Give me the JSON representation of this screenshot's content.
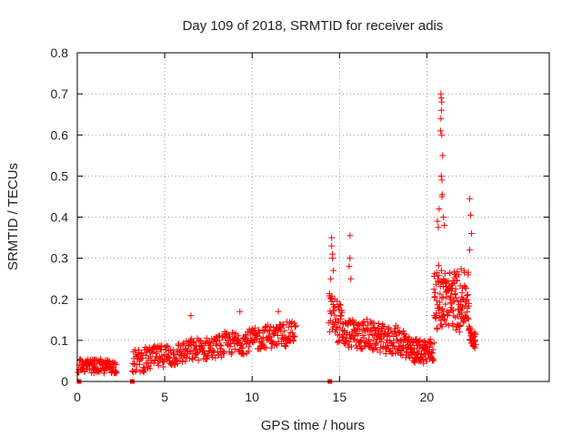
{
  "chart_data": {
    "type": "scatter",
    "title": "Day 109 of 2018, SRMTID for receiver adis",
    "xlabel": "GPS time / hours",
    "ylabel": "SRMTID / TECUs",
    "xlim": [
      0,
      27
    ],
    "ylim": [
      0,
      0.8
    ],
    "grid": true,
    "x_ticks": [
      0,
      5,
      10,
      15,
      20
    ],
    "y_ticks": [
      0,
      0.1,
      0.2,
      0.3,
      0.4,
      0.5,
      0.6,
      0.7,
      0.8
    ],
    "marker": "+",
    "color": "#ff0000",
    "series": [
      {
        "name": "SRMTID",
        "segments": [
          {
            "x_start": 0.05,
            "x_end": 2.25,
            "step": 0.02,
            "base_start": 0.038,
            "base_end": 0.036,
            "spread": 0.016
          },
          {
            "x_start": 3.15,
            "x_end": 12.5,
            "step": 0.022,
            "base_start": 0.048,
            "base_end": 0.12,
            "spread": 0.028
          },
          {
            "x_start": 14.4,
            "x_end": 15.2,
            "step": 0.015,
            "base_start": 0.17,
            "base_end": 0.13,
            "spread": 0.05
          },
          {
            "x_start": 15.2,
            "x_end": 18.8,
            "step": 0.018,
            "base_start": 0.12,
            "base_end": 0.095,
            "spread": 0.035
          },
          {
            "x_start": 18.8,
            "x_end": 20.4,
            "step": 0.015,
            "base_start": 0.075,
            "base_end": 0.075,
            "spread": 0.03
          },
          {
            "x_start": 20.4,
            "x_end": 22.4,
            "step": 0.012,
            "base_start": 0.2,
            "base_end": 0.2,
            "spread": 0.07
          },
          {
            "x_start": 22.4,
            "x_end": 22.8,
            "step": 0.012,
            "base_start": 0.12,
            "base_end": 0.095,
            "spread": 0.02
          }
        ],
        "highlights": [
          {
            "x": 14.55,
            "y": 0.35
          },
          {
            "x": 14.55,
            "y": 0.33
          },
          {
            "x": 14.6,
            "y": 0.31
          },
          {
            "x": 14.6,
            "y": 0.3
          },
          {
            "x": 14.65,
            "y": 0.27
          },
          {
            "x": 14.5,
            "y": 0.25
          },
          {
            "x": 15.6,
            "y": 0.355
          },
          {
            "x": 15.6,
            "y": 0.3
          },
          {
            "x": 15.55,
            "y": 0.28
          },
          {
            "x": 15.65,
            "y": 0.25
          },
          {
            "x": 6.5,
            "y": 0.16
          },
          {
            "x": 9.3,
            "y": 0.17
          },
          {
            "x": 11.5,
            "y": 0.17
          },
          {
            "x": 20.6,
            "y": 0.39
          },
          {
            "x": 20.65,
            "y": 0.375
          },
          {
            "x": 20.7,
            "y": 0.42
          },
          {
            "x": 20.8,
            "y": 0.7
          },
          {
            "x": 20.82,
            "y": 0.69
          },
          {
            "x": 20.85,
            "y": 0.68
          },
          {
            "x": 20.83,
            "y": 0.66
          },
          {
            "x": 20.8,
            "y": 0.64
          },
          {
            "x": 20.78,
            "y": 0.61
          },
          {
            "x": 20.85,
            "y": 0.6
          },
          {
            "x": 20.9,
            "y": 0.55
          },
          {
            "x": 20.82,
            "y": 0.5
          },
          {
            "x": 20.86,
            "y": 0.49
          },
          {
            "x": 20.88,
            "y": 0.455
          },
          {
            "x": 20.86,
            "y": 0.45
          },
          {
            "x": 20.95,
            "y": 0.4
          },
          {
            "x": 21.0,
            "y": 0.38
          },
          {
            "x": 22.45,
            "y": 0.445
          },
          {
            "x": 22.5,
            "y": 0.405
          },
          {
            "x": 22.55,
            "y": 0.36
          },
          {
            "x": 22.45,
            "y": 0.32
          }
        ],
        "gap_markers": [
          0.1,
          3.15,
          14.45
        ]
      }
    ]
  }
}
